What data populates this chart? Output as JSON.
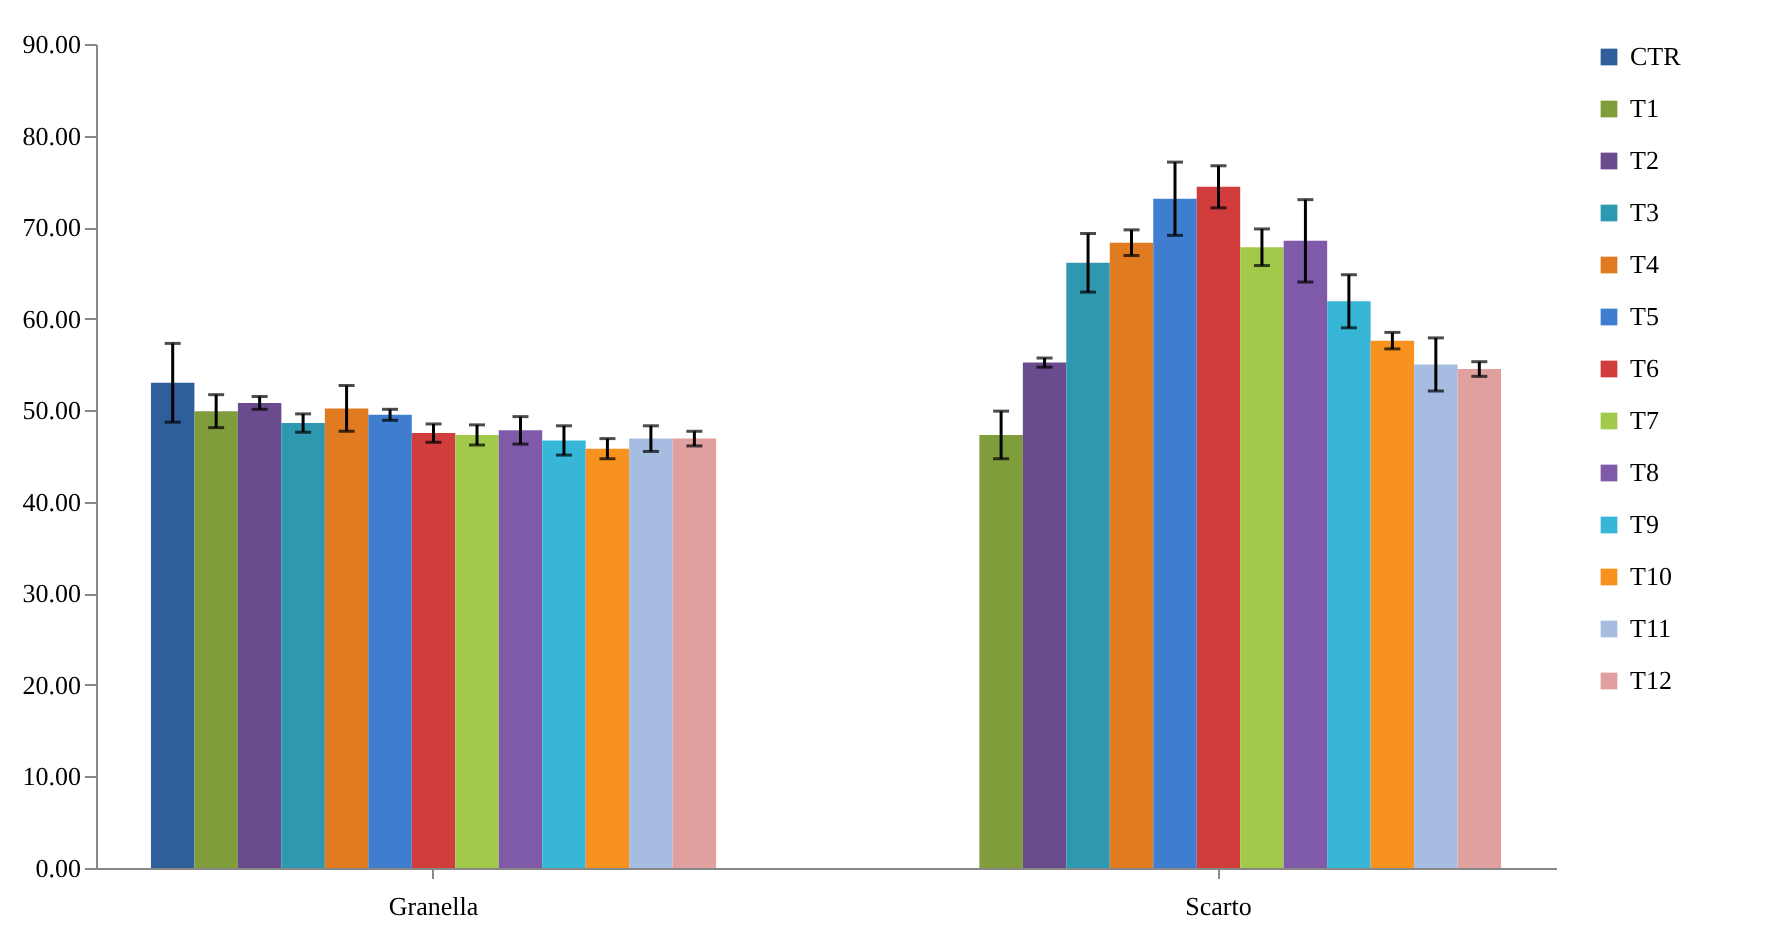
{
  "chart_data": {
    "type": "bar",
    "categories": [
      "Granella",
      "Scarto"
    ],
    "series": [
      {
        "name": "CTR",
        "color": "#2e5f9b",
        "values": [
          53.0,
          null
        ],
        "errors": [
          4.3,
          null
        ]
      },
      {
        "name": "T1",
        "color": "#7f9d3a",
        "values": [
          49.9,
          47.3
        ],
        "errors": [
          1.8,
          2.6
        ]
      },
      {
        "name": "T2",
        "color": "#6a4c8e",
        "values": [
          50.8,
          55.2
        ],
        "errors": [
          0.7,
          0.5
        ]
      },
      {
        "name": "T3",
        "color": "#2e98b0",
        "values": [
          48.6,
          66.1
        ],
        "errors": [
          1.0,
          3.2
        ]
      },
      {
        "name": "T4",
        "color": "#e07b22",
        "values": [
          50.2,
          68.3
        ],
        "errors": [
          2.5,
          1.4
        ]
      },
      {
        "name": "T5",
        "color": "#3f7ecf",
        "values": [
          49.5,
          73.1
        ],
        "errors": [
          0.6,
          4.0
        ]
      },
      {
        "name": "T6",
        "color": "#d13c3c",
        "values": [
          47.5,
          74.4
        ],
        "errors": [
          1.0,
          2.3
        ]
      },
      {
        "name": "T7",
        "color": "#a2c94a",
        "values": [
          47.3,
          67.8
        ],
        "errors": [
          1.1,
          2.0
        ]
      },
      {
        "name": "T8",
        "color": "#7f5aa8",
        "values": [
          47.8,
          68.5
        ],
        "errors": [
          1.5,
          4.5
        ]
      },
      {
        "name": "T9",
        "color": "#38b6d8",
        "values": [
          46.7,
          61.9
        ],
        "errors": [
          1.6,
          2.9
        ]
      },
      {
        "name": "T10",
        "color": "#f7921e",
        "values": [
          45.8,
          57.6
        ],
        "errors": [
          1.1,
          0.9
        ]
      },
      {
        "name": "T11",
        "color": "#a6bce0",
        "values": [
          46.9,
          55.0
        ],
        "errors": [
          1.4,
          2.9
        ]
      },
      {
        "name": "T12",
        "color": "#e0a0a0",
        "values": [
          46.9,
          54.5
        ],
        "errors": [
          0.8,
          0.8
        ]
      }
    ],
    "ylim": [
      0,
      90
    ],
    "yticks": [
      {
        "value": 0,
        "label": "0.00"
      },
      {
        "value": 10,
        "label": "10.00"
      },
      {
        "value": 20,
        "label": "20.00"
      },
      {
        "value": 30,
        "label": "30.00"
      },
      {
        "value": 40,
        "label": "40.00"
      },
      {
        "value": 50,
        "label": "50.00"
      },
      {
        "value": 60,
        "label": "60.00"
      },
      {
        "value": 70,
        "label": "70.00"
      },
      {
        "value": 80,
        "label": "80.00"
      },
      {
        "value": 90,
        "label": "90.00"
      }
    ],
    "grid": false,
    "legend": "right"
  }
}
